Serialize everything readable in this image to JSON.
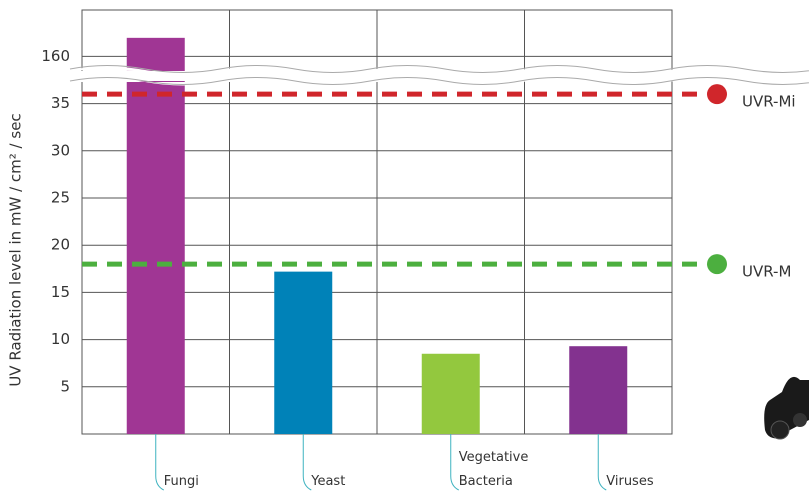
{
  "chart_data": {
    "type": "bar",
    "y_axis_label": "UV Radiation level in  mW / cm² / sec",
    "categories": [
      "Fungi",
      "Yeast",
      "Vegetative Bacteria",
      "Viruses"
    ],
    "values": [
      168,
      17.2,
      8.5,
      9.3
    ],
    "colors": [
      "#a03694",
      "#0082b8",
      "#93c83e",
      "#83328f"
    ],
    "ylim": [
      0,
      180
    ],
    "axis_break": [
      37.5,
      155
    ],
    "yticks": [
      5,
      10,
      15,
      20,
      25,
      30,
      35,
      160
    ],
    "grid": true,
    "reference_lines": [
      {
        "name": "UVR-Mi",
        "value": 36,
        "color": "#d0262b"
      },
      {
        "name": "UVR-M",
        "value": 18,
        "color": "#4caf3f"
      }
    ]
  }
}
